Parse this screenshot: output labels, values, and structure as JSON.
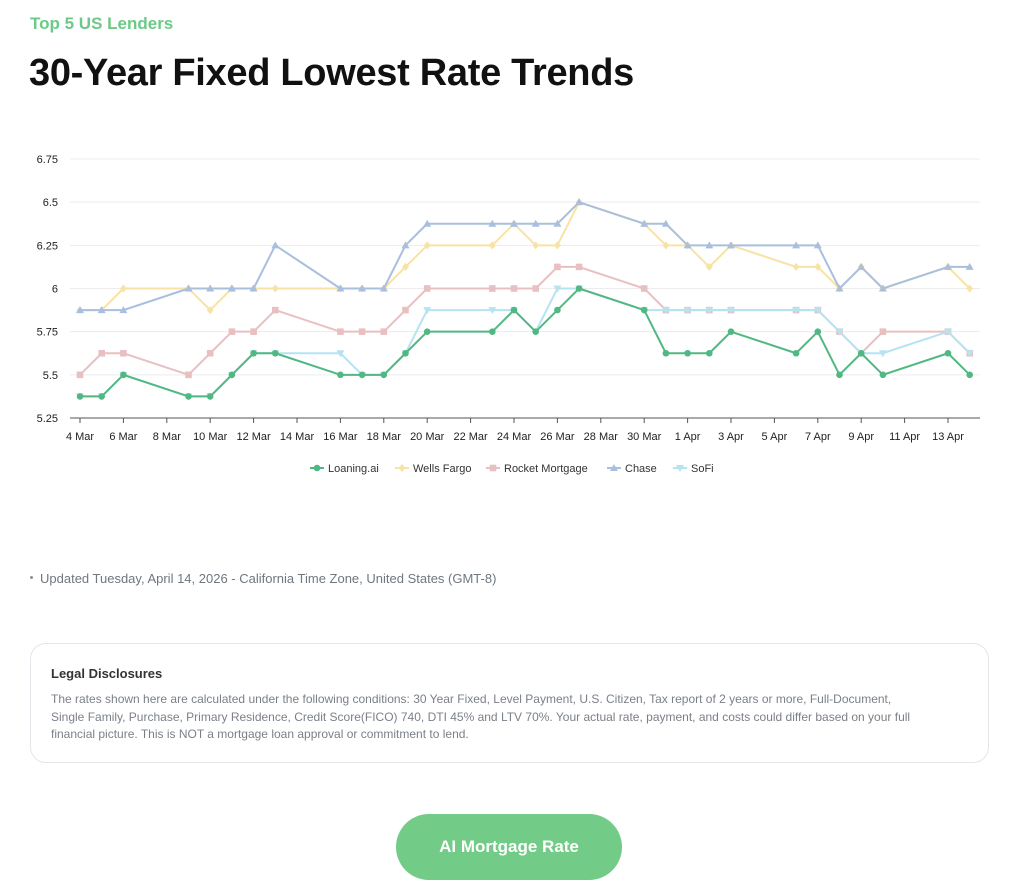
{
  "header": {
    "eyebrow": "Top 5 US Lenders",
    "title": "30-Year Fixed Lowest Rate Trends"
  },
  "updated": "Updated Tuesday, April 14, 2026 - California Time Zone, United States (GMT-8)",
  "legal": {
    "title": "Legal Disclosures",
    "lines": [
      "The rates shown here are calculated under the following conditions: 30 Year Fixed, Level Payment, U.S. Citizen, Tax report of 2 years or more, Full-Document,",
      "Single Family, Purchase, Primary Residence, Credit Score(FICO) 740, DTI 45% and LTV 70%. Your actual rate, payment, and costs could differ based on your full",
      "financial picture. This is NOT a mortgage loan approval or commitment to lend."
    ]
  },
  "cta": {
    "label": "AI Mortgage Rate"
  },
  "chart_data": {
    "type": "line",
    "title": "",
    "xlabel": "",
    "ylabel": "",
    "ylim": [
      5.25,
      6.75
    ],
    "yticks": [
      "5.25",
      "5.5",
      "5.75",
      "6",
      "6.25",
      "6.5",
      "6.75"
    ],
    "xticks": [
      "4 Mar",
      "6 Mar",
      "8 Mar",
      "10 Mar",
      "12 Mar",
      "14 Mar",
      "16 Mar",
      "18 Mar",
      "20 Mar",
      "22 Mar",
      "24 Mar",
      "26 Mar",
      "28 Mar",
      "30 Mar",
      "1 Apr",
      "3 Apr",
      "5 Apr",
      "7 Apr",
      "9 Apr",
      "11 Apr",
      "13 Apr"
    ],
    "grid": "horizontal",
    "legend": "bottom-center",
    "x": [
      "4 Mar",
      "5 Mar",
      "6 Mar",
      "9 Mar",
      "10 Mar",
      "11 Mar",
      "12 Mar",
      "13 Mar",
      "16 Mar",
      "17 Mar",
      "18 Mar",
      "19 Mar",
      "20 Mar",
      "23 Mar",
      "24 Mar",
      "25 Mar",
      "26 Mar",
      "27 Mar",
      "30 Mar",
      "31 Mar",
      "1 Apr",
      "2 Apr",
      "3 Apr",
      "6 Apr",
      "7 Apr",
      "8 Apr",
      "9 Apr",
      "10 Apr",
      "13 Apr",
      "14 Apr"
    ],
    "series": [
      {
        "name": "Wells Fargo",
        "marker": "diamond",
        "color": "#f7e3a5",
        "values": [
          5.875,
          5.875,
          6.0,
          6.0,
          5.875,
          6.0,
          6.0,
          6.0,
          6.0,
          6.0,
          6.0,
          6.125,
          6.25,
          6.25,
          6.375,
          6.25,
          6.25,
          6.5,
          6.375,
          6.25,
          6.25,
          6.125,
          6.25,
          6.125,
          6.125,
          6.0,
          6.125,
          6.0,
          6.125,
          6.0
        ]
      },
      {
        "name": "Rocket Mortgage",
        "marker": "square",
        "color": "#e9c0c2",
        "values": [
          5.5,
          5.625,
          5.625,
          5.5,
          5.625,
          5.75,
          5.75,
          5.875,
          5.75,
          5.75,
          5.75,
          5.875,
          6.0,
          6.0,
          6.0,
          6.0,
          6.125,
          6.125,
          6.0,
          5.875,
          5.875,
          5.875,
          5.875,
          5.875,
          5.875,
          5.75,
          5.625,
          5.75,
          5.75,
          5.625
        ]
      },
      {
        "name": "Chase",
        "marker": "triangle",
        "color": "#a9bfdd",
        "values": [
          5.875,
          5.875,
          5.875,
          6.0,
          6.0,
          6.0,
          6.0,
          6.25,
          6.0,
          6.0,
          6.0,
          6.25,
          6.375,
          6.375,
          6.375,
          6.375,
          6.375,
          6.5,
          6.375,
          6.375,
          6.25,
          6.25,
          6.25,
          6.25,
          6.25,
          6.0,
          6.125,
          6.0,
          6.125,
          6.125
        ]
      },
      {
        "name": "SoFi",
        "marker": "triangle-down",
        "color": "#b6e3f1",
        "values": [
          5.375,
          5.375,
          5.5,
          5.375,
          5.375,
          5.5,
          5.625,
          5.625,
          5.625,
          5.5,
          5.5,
          5.625,
          5.875,
          5.875,
          5.875,
          5.75,
          6.0,
          6.0,
          5.875,
          5.875,
          5.875,
          5.875,
          5.875,
          5.875,
          5.875,
          5.75,
          5.625,
          5.625,
          5.75,
          5.625
        ]
      },
      {
        "name": "Loaning.ai",
        "marker": "circle",
        "color": "#52b883",
        "values": [
          5.375,
          5.375,
          5.5,
          5.375,
          5.375,
          5.5,
          5.625,
          5.625,
          5.5,
          5.5,
          5.5,
          5.625,
          5.75,
          5.75,
          5.875,
          5.75,
          5.875,
          6.0,
          5.875,
          5.625,
          5.625,
          5.625,
          5.75,
          5.625,
          5.75,
          5.5,
          5.625,
          5.5,
          5.625,
          5.5
        ]
      }
    ],
    "legend_order": [
      "Loaning.ai",
      "Wells Fargo",
      "Rocket Mortgage",
      "Chase",
      "SoFi"
    ]
  }
}
